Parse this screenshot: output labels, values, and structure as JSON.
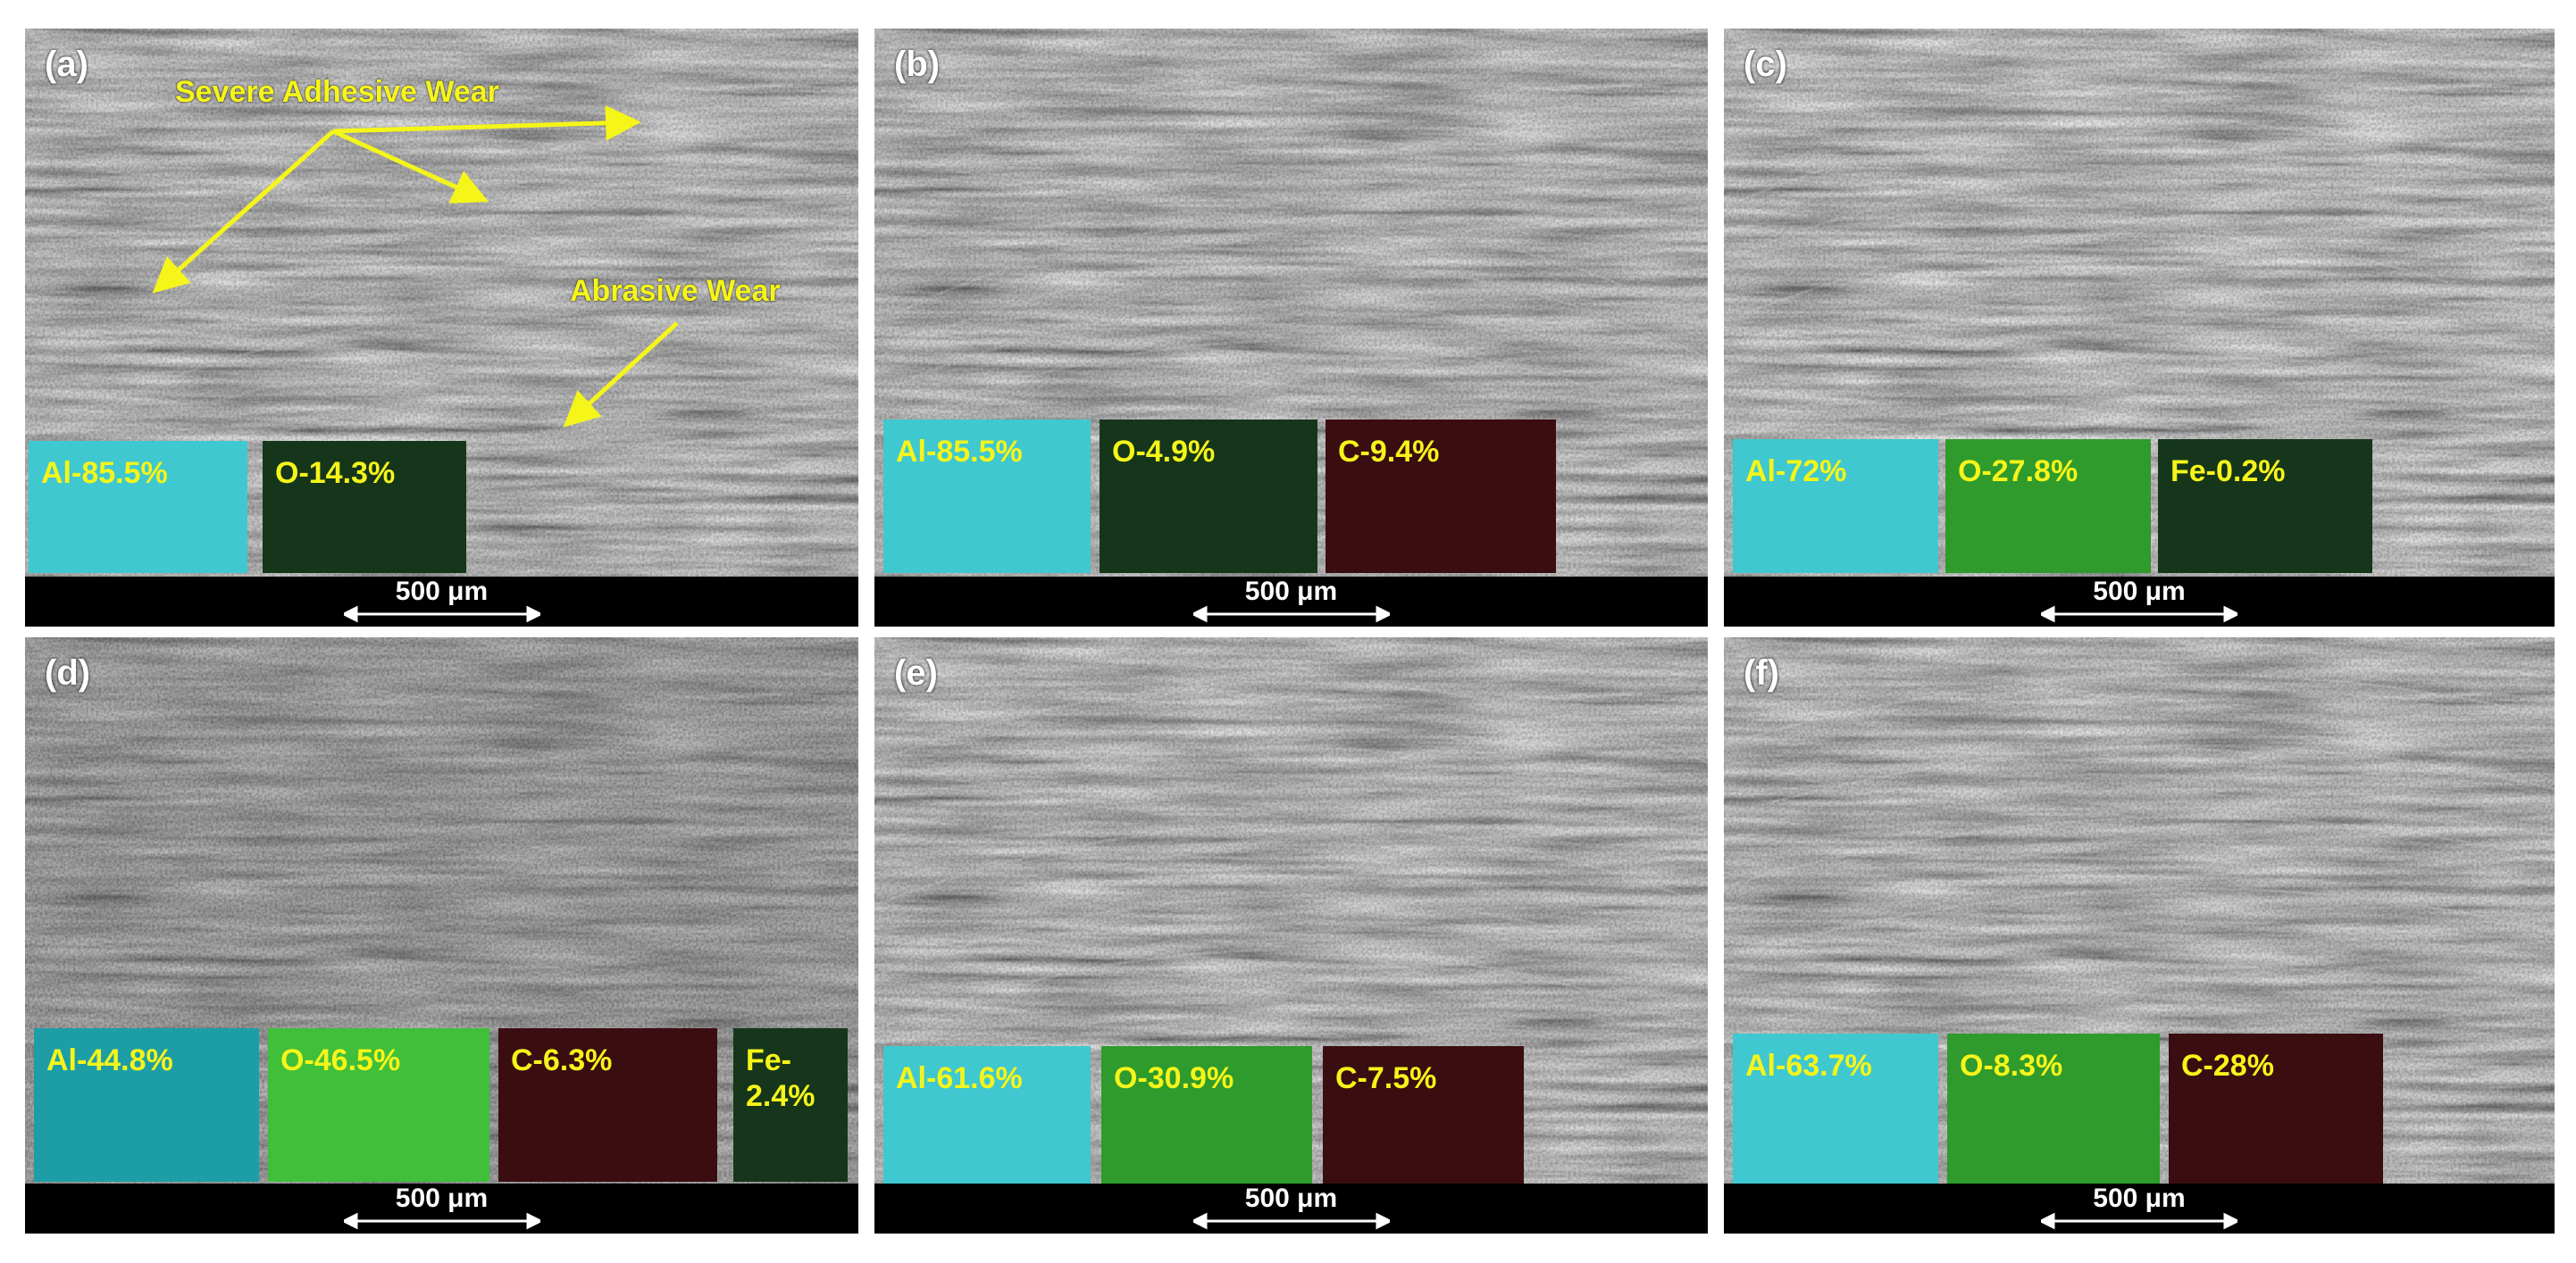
{
  "panels": [
    {
      "label": "(a)",
      "scale": "500 μm",
      "maps": [
        {
          "text": "Al-85.5%",
          "color": "cyan"
        },
        {
          "text": "O-14.3%",
          "color": "green-dark"
        }
      ],
      "annotations": {
        "adhesive": "Severe Adhesive Wear",
        "abrasive": "Abrasive Wear"
      }
    },
    {
      "label": "(b)",
      "scale": "500 μm",
      "maps": [
        {
          "text": "Al-85.5%",
          "color": "cyan"
        },
        {
          "text": "O-4.9%",
          "color": "green-dark"
        },
        {
          "text": "C-9.4%",
          "color": "red-dark"
        }
      ]
    },
    {
      "label": "(c)",
      "scale": "500 μm",
      "maps": [
        {
          "text": "Al-72%",
          "color": "cyan"
        },
        {
          "text": "O-27.8%",
          "color": "green"
        },
        {
          "text": "Fe-0.2%",
          "color": "green-dark"
        }
      ]
    },
    {
      "label": "(d)",
      "scale": "500 μm",
      "maps": [
        {
          "text": "Al-44.8%",
          "color": "cyan-dark"
        },
        {
          "text": "O-46.5%",
          "color": "green-bright"
        },
        {
          "text": "C-6.3%",
          "color": "red-dark"
        },
        {
          "text": "Fe-\n2.4%",
          "color": "green-dark"
        }
      ]
    },
    {
      "label": "(e)",
      "scale": "500 μm",
      "maps": [
        {
          "text": "Al-61.6%",
          "color": "cyan"
        },
        {
          "text": "O-30.9%",
          "color": "green"
        },
        {
          "text": "C-7.5%",
          "color": "red-dark"
        }
      ]
    },
    {
      "label": "(f)",
      "scale": "500 μm",
      "maps": [
        {
          "text": "Al-63.7%",
          "color": "cyan"
        },
        {
          "text": "O-8.3%",
          "color": "green"
        },
        {
          "text": "C-28%",
          "color": "red-dark"
        }
      ]
    }
  ],
  "colors": {
    "cyan": "#3fc8cf",
    "cyan-dark": "#1d9ea6",
    "green": "#2e9b2c",
    "green-bright": "#3fbf3a",
    "green-dark": "#15361a",
    "red-dark": "#3a0d10",
    "annotation": "#f5f51a"
  }
}
